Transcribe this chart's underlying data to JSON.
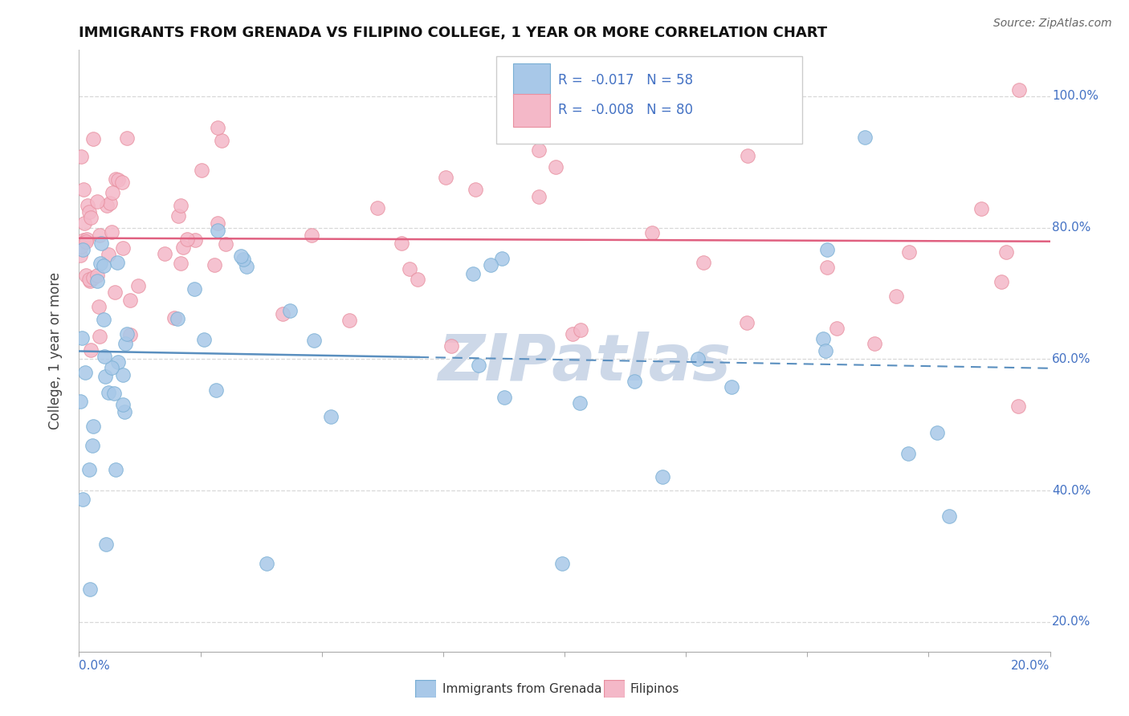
{
  "title": "IMMIGRANTS FROM GRENADA VS FILIPINO COLLEGE, 1 YEAR OR MORE CORRELATION CHART",
  "source": "Source: ZipAtlas.com",
  "ylabel": "College, 1 year or more",
  "yticks": [
    "20.0%",
    "40.0%",
    "60.0%",
    "80.0%",
    "100.0%"
  ],
  "ytick_vals": [
    0.2,
    0.4,
    0.6,
    0.8,
    1.0
  ],
  "xlim": [
    0.0,
    0.2
  ],
  "ylim": [
    0.155,
    1.07
  ],
  "legend_R1": "R =  -0.017",
  "legend_N1": "N = 58",
  "legend_R2": "R =  -0.008",
  "legend_N2": "N = 80",
  "series_grenada": {
    "color": "#a8c8e8",
    "edge_color": "#7aafd4",
    "label": "Immigrants from Grenada"
  },
  "series_filipino": {
    "color": "#f4b8c8",
    "edge_color": "#e890a0",
    "label": "Filipinos"
  },
  "trend_grenada_color": "#5a8fbf",
  "trend_filipino_color": "#e06080",
  "watermark": "ZIPatlas",
  "watermark_color": "#cdd8e8",
  "background_color": "#ffffff",
  "grid_color": "#d8d8d8",
  "grid_style": "--"
}
